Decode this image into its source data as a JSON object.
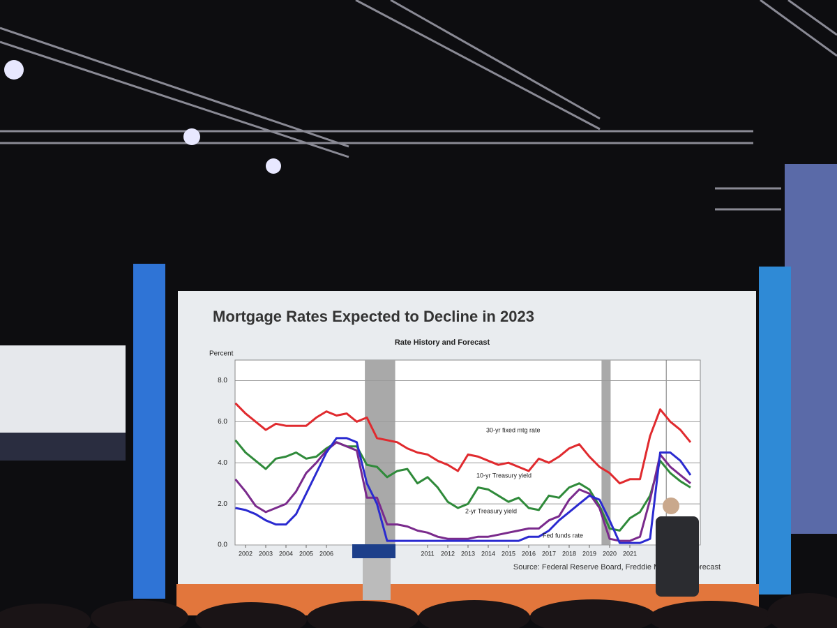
{
  "chart_data": {
    "type": "line",
    "title": "Mortgage Rates Expected to Decline in 2023",
    "subtitle": "Rate History and Forecast",
    "y_label": "Percent",
    "source": "Source: Federal Reserve Board, Freddie Mac, MBA Forecast",
    "x": [
      2001.5,
      2002,
      2002.5,
      2003,
      2003.5,
      2004,
      2004.5,
      2005,
      2005.5,
      2006,
      2006.5,
      2007,
      2007.5,
      2008,
      2008.5,
      2009,
      2009.5,
      2010,
      2010.5,
      2011,
      2011.5,
      2012,
      2012.5,
      2013,
      2013.5,
      2014,
      2014.5,
      2015,
      2015.5,
      2016,
      2016.5,
      2017,
      2017.5,
      2018,
      2018.5,
      2019,
      2019.5,
      2020,
      2020.5,
      2021,
      2021.5,
      2022,
      2022.5,
      2023,
      2023.5,
      2024
    ],
    "series": [
      {
        "name": "30-yr fixed mtg rate",
        "color": "#e02a2e",
        "values": [
          6.9,
          6.4,
          6.0,
          5.6,
          5.9,
          5.8,
          5.8,
          5.8,
          6.2,
          6.5,
          6.3,
          6.4,
          6.0,
          6.2,
          5.2,
          5.1,
          5.0,
          4.7,
          4.5,
          4.4,
          4.1,
          3.9,
          3.6,
          4.4,
          4.3,
          4.1,
          3.9,
          4.0,
          3.8,
          3.6,
          4.2,
          4.0,
          4.3,
          4.7,
          4.9,
          4.3,
          3.8,
          3.5,
          3.0,
          3.2,
          3.2,
          5.3,
          6.6,
          6.0,
          5.6,
          5.0
        ]
      },
      {
        "name": "10-yr Treasury yield",
        "color": "#2f8a3a",
        "values": [
          5.1,
          4.5,
          4.1,
          3.7,
          4.2,
          4.3,
          4.5,
          4.2,
          4.3,
          4.7,
          5.0,
          4.8,
          4.8,
          3.9,
          3.8,
          3.3,
          3.6,
          3.7,
          3.0,
          3.3,
          2.8,
          2.1,
          1.8,
          2.0,
          2.8,
          2.7,
          2.4,
          2.1,
          2.3,
          1.8,
          1.7,
          2.4,
          2.3,
          2.8,
          3.0,
          2.7,
          1.9,
          0.8,
          0.7,
          1.3,
          1.6,
          2.4,
          4.1,
          3.5,
          3.1,
          2.8
        ]
      },
      {
        "name": "2-yr Treasury yield",
        "color": "#7a2a8c",
        "values": [
          3.2,
          2.6,
          1.9,
          1.6,
          1.8,
          2.0,
          2.6,
          3.5,
          4.0,
          4.6,
          5.0,
          4.8,
          4.6,
          2.3,
          2.3,
          1.0,
          1.0,
          0.9,
          0.7,
          0.6,
          0.4,
          0.3,
          0.3,
          0.3,
          0.4,
          0.4,
          0.5,
          0.6,
          0.7,
          0.8,
          0.8,
          1.2,
          1.4,
          2.2,
          2.7,
          2.5,
          1.8,
          0.3,
          0.2,
          0.2,
          0.4,
          2.2,
          4.4,
          3.8,
          3.4,
          3.0
        ]
      },
      {
        "name": "Fed funds rate",
        "color": "#2a2ad0",
        "values": [
          1.8,
          1.7,
          1.5,
          1.2,
          1.0,
          1.0,
          1.5,
          2.5,
          3.5,
          4.5,
          5.2,
          5.2,
          5.0,
          3.0,
          2.0,
          0.2,
          0.2,
          0.2,
          0.2,
          0.2,
          0.2,
          0.2,
          0.2,
          0.2,
          0.2,
          0.2,
          0.2,
          0.2,
          0.2,
          0.4,
          0.4,
          0.7,
          1.2,
          1.6,
          2.0,
          2.4,
          2.2,
          1.2,
          0.1,
          0.1,
          0.1,
          0.3,
          4.5,
          4.5,
          4.1,
          3.4
        ]
      }
    ],
    "xlim": [
      2001.5,
      2024.5
    ],
    "xticks": [
      2002,
      2003,
      2004,
      2005,
      2006,
      2011,
      2012,
      2013,
      2014,
      2015,
      2016,
      2017,
      2018,
      2019,
      2020,
      2021
    ],
    "ylim": [
      0,
      9
    ],
    "yticks": [
      {
        "value": 0,
        "label": "0.0"
      },
      {
        "value": 2,
        "label": "2.0"
      },
      {
        "value": 4,
        "label": "4.0"
      },
      {
        "value": 6,
        "label": "6.0"
      },
      {
        "value": 8,
        "label": "8.0"
      }
    ],
    "grid": true,
    "recessions": [
      [
        2007.9,
        2009.4
      ],
      [
        2019.6,
        2020.05
      ]
    ],
    "forecast_start": 2022.8
  }
}
